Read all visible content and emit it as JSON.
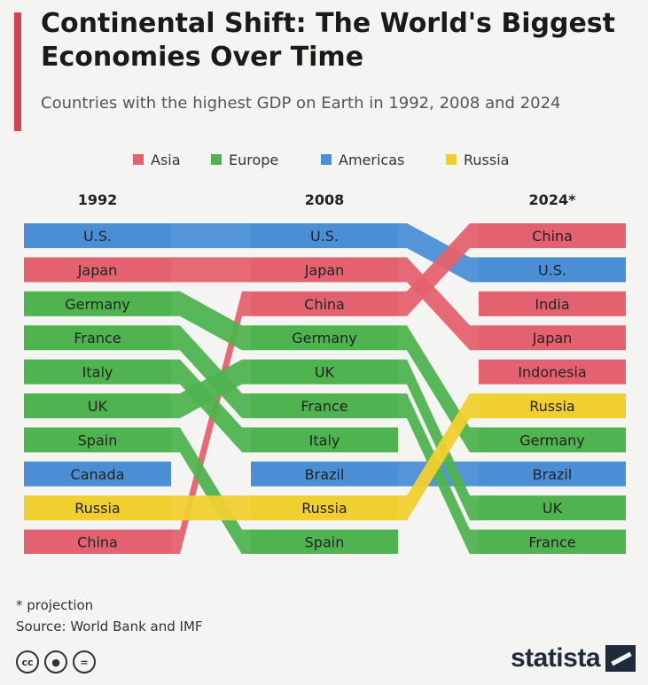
{
  "header": {
    "title": "Continental Shift: The World's Biggest Economies Over Time",
    "subtitle": "Countries with the highest GDP on Earth in 1992, 2008 and 2024"
  },
  "footer": {
    "footnote": "* projection",
    "source": "Source: World Bank and IMF",
    "brand": "statista",
    "license_icons": [
      "cc-icon",
      "attribution-icon",
      "no-derivatives-icon"
    ]
  },
  "colors": {
    "Asia": "#e4626f",
    "Europe": "#4fb34f",
    "Americas": "#4a8fd6",
    "Russia": "#f0d02f",
    "accent": "#d6404f"
  },
  "chart_data": {
    "type": "table",
    "legend": [
      "Asia",
      "Europe",
      "Americas",
      "Russia"
    ],
    "legend_position": "top-center",
    "columns": [
      "1992",
      "2008",
      "2024*"
    ],
    "rankings": [
      [
        "U.S.",
        "Japan",
        "Germany",
        "France",
        "Italy",
        "UK",
        "Spain",
        "Canada",
        "Russia",
        "China"
      ],
      [
        "U.S.",
        "Japan",
        "China",
        "Germany",
        "UK",
        "France",
        "Italy",
        "Brazil",
        "Russia",
        "Spain"
      ],
      [
        "China",
        "U.S.",
        "India",
        "Japan",
        "Indonesia",
        "Russia",
        "Germany",
        "Brazil",
        "UK",
        "France"
      ]
    ],
    "region": {
      "U.S.": "Americas",
      "Canada": "Americas",
      "Brazil": "Americas",
      "Japan": "Asia",
      "China": "Asia",
      "India": "Asia",
      "Indonesia": "Asia",
      "Germany": "Europe",
      "France": "Europe",
      "Italy": "Europe",
      "UK": "Europe",
      "Spain": "Europe",
      "Russia": "Russia"
    }
  }
}
